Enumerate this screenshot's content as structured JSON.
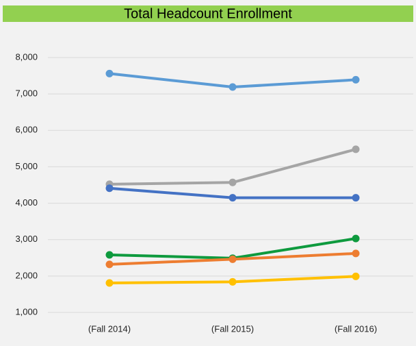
{
  "chart_data": {
    "type": "line",
    "title": "Total Headcount Enrollment",
    "categories": [
      "(Fall 2014)",
      "(Fall 2015)",
      "(Fall 2016)"
    ],
    "series": [
      {
        "color": "#5b9bd5",
        "values": [
          7560,
          7190,
          7390
        ]
      },
      {
        "color": "#a5a5a5",
        "values": [
          4520,
          4570,
          5480
        ]
      },
      {
        "color": "#4472c4",
        "values": [
          4410,
          4150,
          4150
        ]
      },
      {
        "color": "#0e9a3e",
        "values": [
          2580,
          2490,
          3030
        ]
      },
      {
        "color": "#ed7d31",
        "values": [
          2320,
          2460,
          2620
        ]
      },
      {
        "color": "#ffc000",
        "values": [
          1810,
          1840,
          1990
        ]
      }
    ],
    "ylim": [
      1000,
      8000
    ],
    "yticks": [
      {
        "value": 1000,
        "label": "1,000"
      },
      {
        "value": 2000,
        "label": "2,000"
      },
      {
        "value": 3000,
        "label": "3,000"
      },
      {
        "value": 4000,
        "label": "4,000"
      },
      {
        "value": 5000,
        "label": "5,000"
      },
      {
        "value": 6000,
        "label": "6,000"
      },
      {
        "value": 7000,
        "label": "7,000"
      },
      {
        "value": 8000,
        "label": "8,000"
      }
    ],
    "grid": true
  }
}
